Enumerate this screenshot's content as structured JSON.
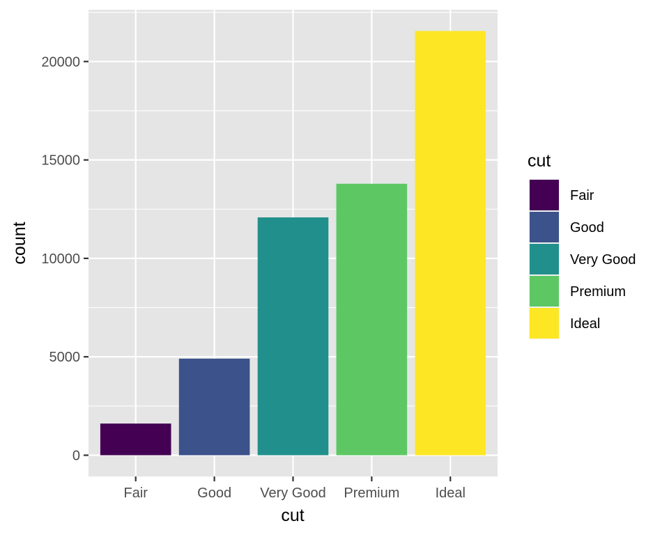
{
  "chart_data": {
    "type": "bar",
    "categories": [
      "Fair",
      "Good",
      "Very Good",
      "Premium",
      "Ideal"
    ],
    "values": [
      1610,
      4906,
      12082,
      13791,
      21551
    ],
    "colors": [
      "#440154",
      "#3B528B",
      "#21908C",
      "#5DC863",
      "#FDE725"
    ],
    "xlabel": "cut",
    "ylabel": "count",
    "ylim": [
      -1080,
      22630
    ],
    "yticks": [
      0,
      5000,
      10000,
      15000,
      20000
    ],
    "ytick_labels": [
      "0",
      "5000",
      "10000",
      "15000",
      "20000"
    ],
    "grid": true,
    "panel_background": "#E5E5E5",
    "grid_color": "#FFFFFF",
    "legend": {
      "title": "cut",
      "placement": "right",
      "entries": [
        "Fair",
        "Good",
        "Very Good",
        "Premium",
        "Ideal"
      ]
    }
  }
}
